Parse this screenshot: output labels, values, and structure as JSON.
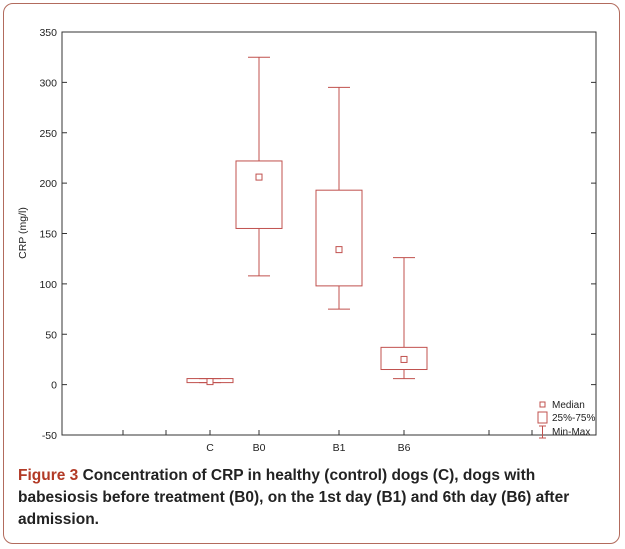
{
  "chart_data": {
    "type": "box",
    "categories": [
      "C",
      "B0",
      "B1",
      "B6"
    ],
    "boxes": [
      {
        "category": "C",
        "min": 2,
        "q1": 2,
        "median": 3,
        "q3": 6,
        "max": 6
      },
      {
        "category": "B0",
        "min": 108,
        "q1": 155,
        "median": 206,
        "q3": 222,
        "max": 325
      },
      {
        "category": "B1",
        "min": 75,
        "q1": 98,
        "median": 134,
        "q3": 193,
        "max": 295
      },
      {
        "category": "B6",
        "min": 6,
        "q1": 15,
        "median": 25,
        "q3": 37,
        "max": 126
      }
    ],
    "ylabel": "CRP (mg/l)",
    "xlabel": "",
    "ylim": [
      -50,
      350
    ],
    "yticks": [
      -50,
      0,
      50,
      100,
      150,
      200,
      250,
      300,
      350
    ],
    "legend": {
      "placement": "bottom-right",
      "entries": [
        "Median",
        "25%-75%",
        "Min-Max"
      ]
    },
    "color": "#c0504d"
  },
  "caption": {
    "label": "Figure 3",
    "text": " Concentration of CRP in healthy (control) dogs (C), dogs with babesiosis before treatment (B0), on the 1st day (B1) and 6th day (B6) after admission."
  }
}
